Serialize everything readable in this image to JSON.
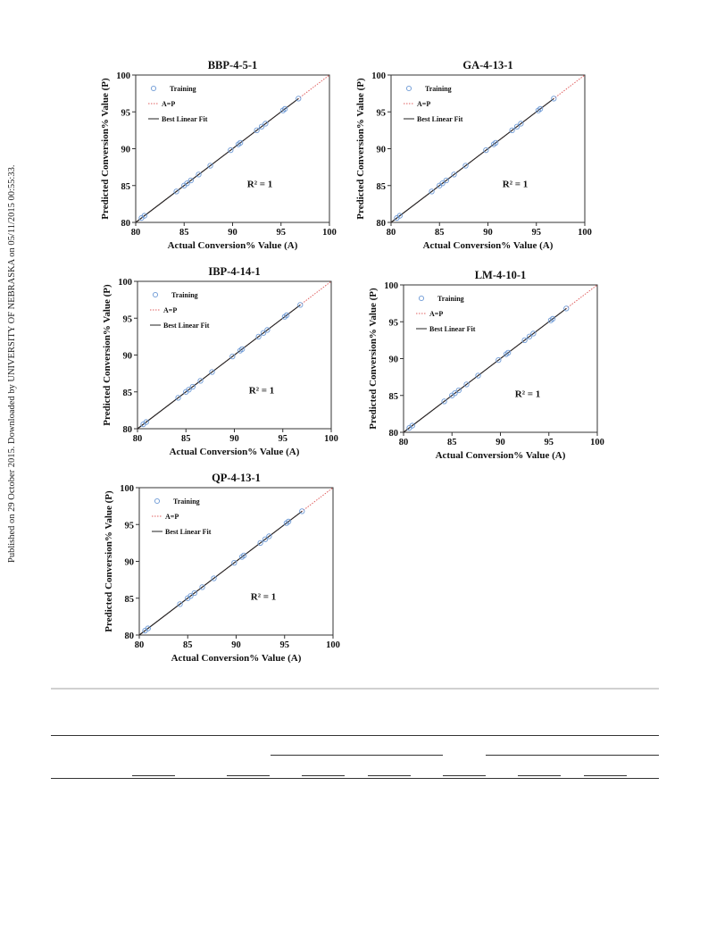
{
  "sidebar": {
    "text": "Published on 29 October 2015. Downloaded by UNIVERSITY OF NEBRASKA on 05/11/2015 00:55:33."
  },
  "colors": {
    "training": "#6f9bd6",
    "ap_line": "#e06060",
    "fit_line": "#222222"
  },
  "chart_data": [
    {
      "type": "scatter",
      "title": "BBP-4-5-1",
      "xlabel": "Actual Conversion% Value (A)",
      "ylabel": "Predicted Conversion% Value (P)",
      "xlim": [
        80,
        100
      ],
      "ylim": [
        80,
        100
      ],
      "xticks": [
        80,
        85,
        90,
        95,
        100
      ],
      "yticks": [
        80,
        85,
        90,
        95,
        100
      ],
      "legend": [
        "Training",
        "A=P",
        "Best Linear Fit"
      ],
      "annotation": "R² = 1",
      "series": [
        {
          "name": "Training",
          "x": [
            80.6,
            80.9,
            84.2,
            85.0,
            85.3,
            85.7,
            86.5,
            87.7,
            89.8,
            90.6,
            90.8,
            92.5,
            93.0,
            93.4,
            95.2,
            95.4,
            96.8
          ],
          "y": [
            80.6,
            80.9,
            84.2,
            85.0,
            85.3,
            85.7,
            86.5,
            87.7,
            89.8,
            90.6,
            90.8,
            92.5,
            93.0,
            93.4,
            95.2,
            95.4,
            96.8
          ]
        }
      ]
    },
    {
      "type": "scatter",
      "title": "GA-4-13-1",
      "xlabel": "Actual Conversion% Value (A)",
      "ylabel": "Predicted Conversion% Value (P)",
      "xlim": [
        80,
        100
      ],
      "ylim": [
        80,
        100
      ],
      "xticks": [
        80,
        85,
        90,
        95,
        100
      ],
      "yticks": [
        80,
        85,
        90,
        95,
        100
      ],
      "legend": [
        "Training",
        "A=P",
        "Best Linear Fit"
      ],
      "annotation": "R² = 1",
      "series": [
        {
          "name": "Training",
          "x": [
            80.6,
            80.9,
            84.2,
            85.0,
            85.3,
            85.7,
            86.5,
            87.7,
            89.8,
            90.6,
            90.8,
            92.5,
            93.0,
            93.4,
            95.2,
            95.4,
            96.8
          ],
          "y": [
            80.6,
            80.9,
            84.2,
            85.0,
            85.3,
            85.7,
            86.5,
            87.7,
            89.8,
            90.6,
            90.8,
            92.5,
            93.0,
            93.4,
            95.2,
            95.4,
            96.8
          ]
        }
      ]
    },
    {
      "type": "scatter",
      "title": "IBP-4-14-1",
      "xlabel": "Actual Conversion% Value (A)",
      "ylabel": "Predicted Conversion% Value (P)",
      "xlim": [
        80,
        100
      ],
      "ylim": [
        80,
        100
      ],
      "xticks": [
        80,
        85,
        90,
        95,
        100
      ],
      "yticks": [
        80,
        85,
        90,
        95,
        100
      ],
      "legend": [
        "Training",
        "A=P",
        "Best Linear Fit"
      ],
      "annotation": "R² = 1",
      "series": [
        {
          "name": "Training",
          "x": [
            80.6,
            80.9,
            84.2,
            85.0,
            85.3,
            85.7,
            86.5,
            87.7,
            89.8,
            90.6,
            90.8,
            92.5,
            93.0,
            93.4,
            95.2,
            95.4,
            96.8
          ],
          "y": [
            80.6,
            80.9,
            84.2,
            85.0,
            85.3,
            85.7,
            86.5,
            87.7,
            89.8,
            90.6,
            90.8,
            92.5,
            93.0,
            93.4,
            95.2,
            95.4,
            96.8
          ]
        }
      ]
    },
    {
      "type": "scatter",
      "title": "LM-4-10-1",
      "xlabel": "Actual Conversion% Value (A)",
      "ylabel": "Predicted Conversion% Value (P)",
      "xlim": [
        80,
        100
      ],
      "ylim": [
        80,
        100
      ],
      "xticks": [
        80,
        85,
        90,
        95,
        100
      ],
      "yticks": [
        80,
        85,
        90,
        95,
        100
      ],
      "legend": [
        "Training",
        "A=P",
        "Best Linear Fit"
      ],
      "annotation": "R² = 1",
      "series": [
        {
          "name": "Training",
          "x": [
            80.6,
            80.9,
            84.2,
            85.0,
            85.3,
            85.7,
            86.5,
            87.7,
            89.8,
            90.6,
            90.8,
            92.5,
            93.0,
            93.4,
            95.2,
            95.4,
            96.8
          ],
          "y": [
            80.6,
            80.9,
            84.2,
            85.0,
            85.3,
            85.7,
            86.5,
            87.7,
            89.8,
            90.6,
            90.8,
            92.5,
            93.0,
            93.4,
            95.2,
            95.4,
            96.8
          ]
        }
      ]
    },
    {
      "type": "scatter",
      "title": "QP-4-13-1",
      "xlabel": "Actual Conversion% Value (A)",
      "ylabel": "Predicted Conversion% Value (P)",
      "xlim": [
        80,
        100
      ],
      "ylim": [
        80,
        100
      ],
      "xticks": [
        80,
        85,
        90,
        95,
        100
      ],
      "yticks": [
        80,
        85,
        90,
        95,
        100
      ],
      "legend": [
        "Training",
        "A=P",
        "Best Linear Fit"
      ],
      "annotation": "R² = 1",
      "series": [
        {
          "name": "Training",
          "x": [
            80.6,
            80.9,
            84.2,
            85.0,
            85.3,
            85.7,
            86.5,
            87.7,
            89.8,
            90.6,
            90.8,
            92.5,
            93.0,
            93.4,
            95.2,
            95.4,
            96.8
          ],
          "y": [
            80.6,
            80.9,
            84.2,
            85.0,
            85.3,
            85.7,
            86.5,
            87.7,
            89.8,
            90.6,
            90.8,
            92.5,
            93.0,
            93.4,
            95.2,
            95.4,
            96.8
          ]
        }
      ]
    }
  ]
}
